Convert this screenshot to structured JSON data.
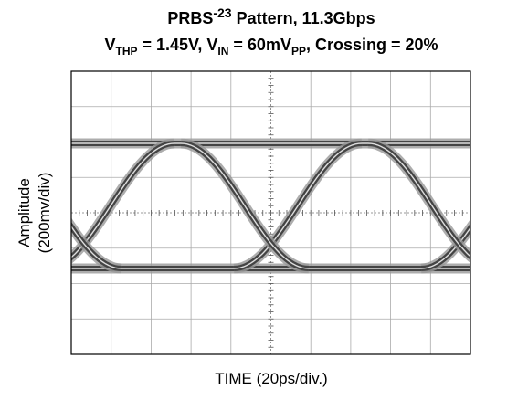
{
  "title": {
    "line1": [
      "PRBS",
      "-23",
      " Pattern, 11.3Gbps"
    ],
    "line2": [
      "V",
      "THP",
      " = 1.45V, V",
      "IN",
      " = 60mV",
      "PP",
      ", Crossing = 20%"
    ]
  },
  "y_label": [
    "Amplitude",
    "(200mv/div)"
  ],
  "x_label": "TIME (20ps/div.)"
}
